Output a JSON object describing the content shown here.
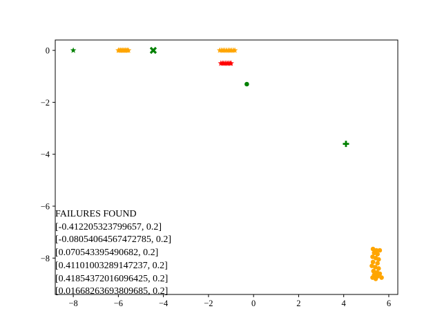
{
  "chart_data": {
    "type": "scatter",
    "title": "",
    "xlabel": "",
    "ylabel": "",
    "xlim": [
      -8.8,
      6.4
    ],
    "ylim": [
      -9.4,
      0.4
    ],
    "x_ticks": [
      -8,
      -6,
      -4,
      -2,
      0,
      2,
      4,
      6
    ],
    "x_tick_labels": [
      "−8",
      "−6",
      "−4",
      "−2",
      "0",
      "2",
      "4",
      "6"
    ],
    "y_ticks": [
      0,
      -2,
      -4,
      -6,
      -8
    ],
    "y_tick_labels": [
      "0",
      "−2",
      "−4",
      "−6",
      "−8"
    ],
    "grid": false,
    "series": [
      {
        "color": "#ffa500",
        "marker": "star",
        "points": [
          [
            -6.0,
            0.0
          ],
          [
            -5.95,
            0.0
          ],
          [
            -5.9,
            0.0
          ],
          [
            -5.85,
            0.0
          ],
          [
            -5.8,
            0.0
          ],
          [
            -5.75,
            0.0
          ],
          [
            -5.7,
            0.0
          ],
          [
            -5.65,
            0.0
          ],
          [
            -5.6,
            0.0
          ],
          [
            -5.55,
            0.0
          ],
          [
            -1.5,
            0.0
          ],
          [
            -1.42,
            0.0
          ],
          [
            -1.35,
            0.0
          ],
          [
            -1.28,
            0.0
          ],
          [
            -1.2,
            0.0
          ],
          [
            -1.12,
            0.0
          ],
          [
            -1.05,
            0.0
          ],
          [
            -0.98,
            0.0
          ],
          [
            -0.9,
            0.0
          ],
          [
            -0.83,
            0.0
          ]
        ]
      },
      {
        "color": "#ff0000",
        "marker": "star",
        "points": [
          [
            -1.45,
            -0.5
          ],
          [
            -1.38,
            -0.5
          ],
          [
            -1.32,
            -0.5
          ],
          [
            -1.25,
            -0.5
          ],
          [
            -1.18,
            -0.5
          ],
          [
            -1.12,
            -0.5
          ],
          [
            -1.05,
            -0.5
          ],
          [
            -1.0,
            -0.5
          ]
        ]
      },
      {
        "color": "#008000",
        "marker": "star",
        "points": [
          [
            -8.0,
            0.0
          ]
        ]
      },
      {
        "color": "#008000",
        "marker": "x",
        "points": [
          [
            -4.45,
            0.0
          ]
        ]
      },
      {
        "color": "#008000",
        "marker": "circle",
        "points": [
          [
            -0.3,
            -1.3
          ]
        ]
      },
      {
        "color": "#008000",
        "marker": "plus",
        "points": [
          [
            4.1,
            -3.6
          ]
        ]
      },
      {
        "color": "#ffa500",
        "marker": "circle",
        "points": [
          [
            5.3,
            -7.65
          ],
          [
            5.45,
            -7.7
          ],
          [
            5.6,
            -7.7
          ],
          [
            5.35,
            -7.8
          ],
          [
            5.5,
            -7.85
          ],
          [
            5.28,
            -7.95
          ],
          [
            5.42,
            -8.0
          ],
          [
            5.55,
            -8.05
          ],
          [
            5.3,
            -8.15
          ],
          [
            5.5,
            -8.2
          ],
          [
            5.25,
            -8.3
          ],
          [
            5.4,
            -8.35
          ],
          [
            5.55,
            -8.4
          ],
          [
            5.32,
            -8.5
          ],
          [
            5.48,
            -8.55
          ],
          [
            5.6,
            -8.6
          ],
          [
            5.35,
            -8.65
          ],
          [
            5.5,
            -8.7
          ],
          [
            5.28,
            -8.75
          ],
          [
            5.68,
            -8.75
          ],
          [
            5.42,
            -8.8
          ]
        ]
      }
    ],
    "annotation": {
      "lines": [
        "FAILURES FOUND",
        "[-0.412205323799657, 0.2]",
        "[-0.080540645674727​85, 0.2]",
        "[0.070543395490682, 0.2]",
        "[0.411010032891472​37, 0.2]",
        "[0.418543720160964​25, 0.2]",
        "[0.016682636938096​85, 0.2]"
      ]
    }
  }
}
